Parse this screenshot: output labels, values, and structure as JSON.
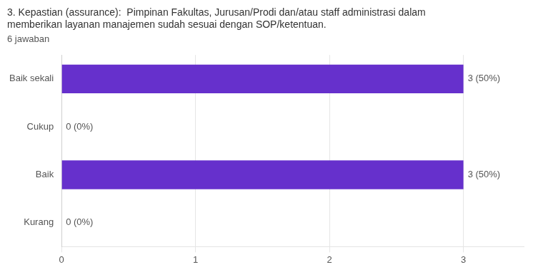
{
  "chart_data": {
    "type": "bar",
    "orientation": "horizontal",
    "title": [
      "3. Kepastian (assurance):  Pimpinan Fakultas, Jurusan/Prodi dan/atau staff administrasi dalam",
      "memberikan layanan manajemen sudah sesuai dengan SOP/ketentuan."
    ],
    "subtitle": "6 jawaban",
    "categories": [
      "Baik sekali",
      "Cukup",
      "Baik",
      "Kurang"
    ],
    "values": [
      3,
      0,
      3,
      0
    ],
    "value_labels": [
      "3 (50%)",
      "0 (0%)",
      "3 (50%)",
      "0 (0%)"
    ],
    "data_labels": true,
    "color": "#6630CC",
    "xlim": [
      0,
      3.45
    ],
    "xticks": [
      0,
      1,
      2,
      3
    ],
    "grid": true
  }
}
